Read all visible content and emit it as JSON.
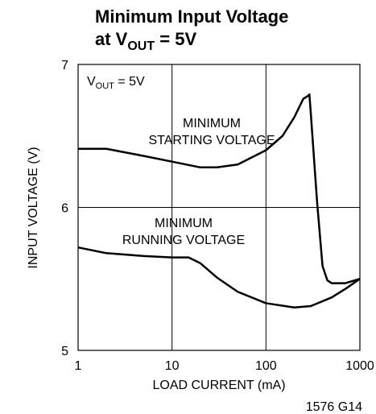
{
  "chart_data": {
    "type": "line",
    "title": "Minimum Input Voltage",
    "subtitle": {
      "text": "at V",
      "sub": "OUT",
      "rest": " = 5V"
    },
    "x_label": "LOAD CURRENT (mA)",
    "y_label": "INPUT VOLTAGE (V)",
    "xscale": "log",
    "xlim": [
      1,
      1000
    ],
    "xticks": [
      1,
      10,
      100,
      1000
    ],
    "ylim": [
      5,
      7
    ],
    "yticks": [
      5,
      6,
      7
    ],
    "grid": true,
    "annotations": [
      {
        "text": "V",
        "sub": "OUT",
        "rest": " = 5V"
      },
      {
        "lines": [
          "MINIMUM",
          "STARTING VOLTAGE"
        ]
      },
      {
        "lines": [
          "MINIMUM",
          "RUNNING VOLTAGE"
        ]
      }
    ],
    "footnote": "1576 G14",
    "series": [
      {
        "name": "MINIMUM STARTING VOLTAGE",
        "color": "#000000",
        "x": [
          1,
          2,
          5,
          10,
          20,
          30,
          50,
          100,
          150,
          200,
          250,
          280,
          290,
          300,
          350,
          400,
          450,
          500,
          700,
          1000
        ],
        "values": [
          6.41,
          6.41,
          6.36,
          6.32,
          6.28,
          6.28,
          6.3,
          6.4,
          6.5,
          6.63,
          6.76,
          6.78,
          6.79,
          6.66,
          6.04,
          5.59,
          5.49,
          5.47,
          5.47,
          5.5
        ]
      },
      {
        "name": "MINIMUM RUNNING VOLTAGE",
        "color": "#000000",
        "x": [
          1,
          2,
          5,
          10,
          15,
          20,
          30,
          50,
          100,
          200,
          300,
          500,
          700,
          1000
        ],
        "values": [
          5.72,
          5.68,
          5.66,
          5.65,
          5.65,
          5.61,
          5.51,
          5.41,
          5.33,
          5.3,
          5.31,
          5.37,
          5.43,
          5.5
        ]
      }
    ]
  }
}
